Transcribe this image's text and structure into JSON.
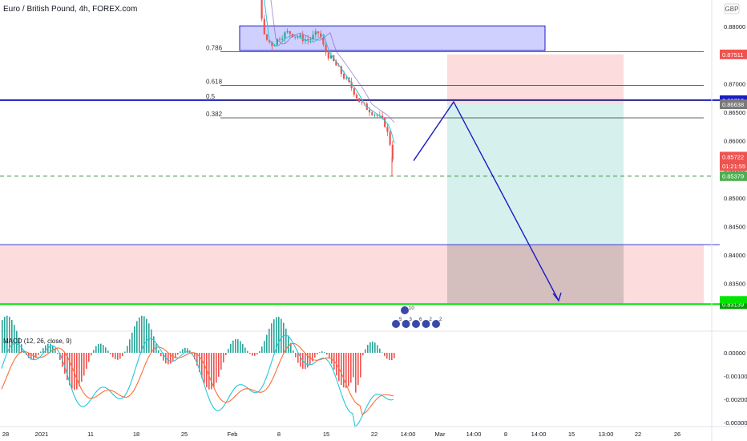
{
  "header": {
    "symbol_title": "Euro / British Pound, 4h, FOREX.com",
    "currency_badge": "GBP"
  },
  "macd": {
    "label": "MACD (12, 26, close, 9)",
    "ticks": [
      "0.00000",
      "-0.00100",
      "-0.00200",
      "-0.00300"
    ]
  },
  "colors": {
    "up_candle": "#26a69a",
    "down_candle": "#ef5350",
    "fib_box": "#c8c8ff",
    "loss_zone": "#fcd6d6",
    "profit_zone": "#cfeeea",
    "projection_line": "#1c1cc4",
    "support_line": "#00e600",
    "dashed_level": "#388e3c",
    "macd_line": "#26c6da",
    "signal_line": "#ff6d3a"
  },
  "chart_data": {
    "type": "candlestick",
    "title": "Euro / British Pound, 4h, FOREX.com",
    "y_axis": {
      "ticks": [
        "0.88000",
        "0.87500",
        "0.87000",
        "0.86500",
        "0.86000",
        "0.85500",
        "0.85000",
        "0.84500",
        "0.84000",
        "0.83500"
      ],
      "range": [
        0.8284,
        0.8893
      ]
    },
    "x_axis": {
      "ticks": [
        "28",
        "2021",
        "11",
        "18",
        "25",
        "Feb",
        "8",
        "15",
        "22",
        "14:00",
        "Mar",
        "14:00",
        "8",
        "14:00",
        "15",
        "22",
        "13:00",
        "26"
      ]
    },
    "price_labels": [
      {
        "value": "0.87511",
        "price": 0.87511,
        "color": "#ef5350"
      },
      {
        "value": "0.86710",
        "price": 0.8671,
        "color": "#1c1cc4"
      },
      {
        "value": "0.86638",
        "price": 0.86638,
        "color": "#7a7a7a"
      },
      {
        "value": "0.85722",
        "price": 0.85722,
        "color": "#ef5350"
      },
      {
        "value": "01:21:55",
        "price": 0.8556,
        "color": "#ef5350"
      },
      {
        "value": "0.85379",
        "price": 0.85379,
        "color": "#4caf50"
      },
      {
        "value": "0.83139",
        "price": 0.83139,
        "color": "#00a000"
      }
    ],
    "fib_levels": [
      {
        "label": "0.786",
        "price": 0.8756
      },
      {
        "label": "0.618",
        "price": 0.8697
      },
      {
        "label": "0.5",
        "price": 0.8671
      },
      {
        "label": "0.382",
        "price": 0.864
      }
    ],
    "horizontal_lines": [
      {
        "name": "resistance-0.5",
        "price": 0.8671
      },
      {
        "name": "zone-top",
        "price": 0.8418
      },
      {
        "name": "support",
        "price": 0.8314
      }
    ],
    "dashed_level": 0.8538,
    "boxes": [
      {
        "name": "fib-zone",
        "price_top": 0.8801,
        "price_bottom": 0.8758
      },
      {
        "name": "stop-zone",
        "price_top": 0.8751,
        "price_bottom": 0.8664
      },
      {
        "name": "target-zone",
        "price_top": 0.8664,
        "price_bottom": 0.8314
      },
      {
        "name": "lower-pink-zone",
        "price_top": 0.8418,
        "price_bottom": 0.8314
      }
    ],
    "projection_path": [
      0.8565,
      0.8668,
      0.832
    ],
    "event_markers": [
      "10",
      "5",
      "3",
      "6",
      "2",
      "2"
    ]
  }
}
